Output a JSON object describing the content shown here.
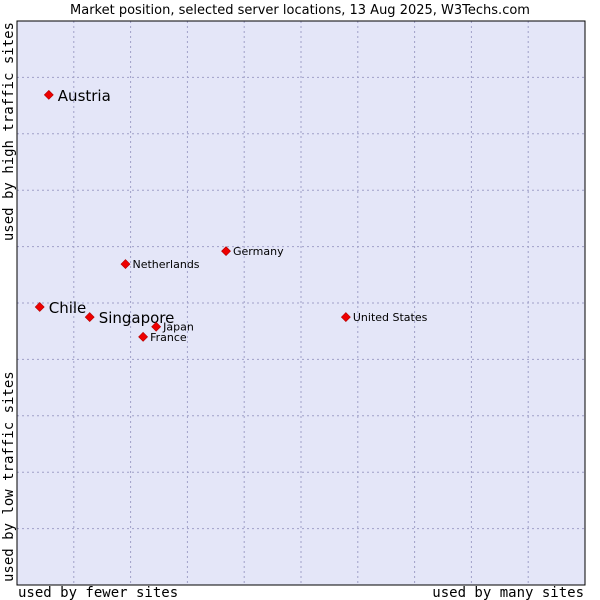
{
  "chart_data": {
    "type": "scatter",
    "title": "Market position, selected server locations, 13 Aug 2025, W3Techs.com",
    "xlabel_low": "used by fewer sites",
    "xlabel_high": "used by many sites",
    "ylabel_low": "used by low traffic sites",
    "ylabel_high": "used by high traffic sites",
    "xlim": [
      0,
      100
    ],
    "ylim": [
      0,
      100
    ],
    "grid": true,
    "colors": {
      "plot_bg": "#e4e6f8",
      "marker": "#ee0000",
      "grid": "#a0a0c8",
      "frame": "#000000"
    },
    "points": [
      {
        "name": "Austria",
        "x": 5.6,
        "y": 86.9,
        "emphasis": true
      },
      {
        "name": "Chile",
        "x": 4.0,
        "y": 49.3,
        "emphasis": true
      },
      {
        "name": "Singapore",
        "x": 12.8,
        "y": 47.5,
        "emphasis": true
      },
      {
        "name": "Netherlands",
        "x": 19.1,
        "y": 56.9,
        "emphasis": false
      },
      {
        "name": "Germany",
        "x": 36.8,
        "y": 59.2,
        "emphasis": false
      },
      {
        "name": "Japan",
        "x": 24.5,
        "y": 45.8,
        "emphasis": false
      },
      {
        "name": "France",
        "x": 22.2,
        "y": 44.0,
        "emphasis": false
      },
      {
        "name": "United States",
        "x": 57.9,
        "y": 47.5,
        "emphasis": false
      }
    ]
  }
}
